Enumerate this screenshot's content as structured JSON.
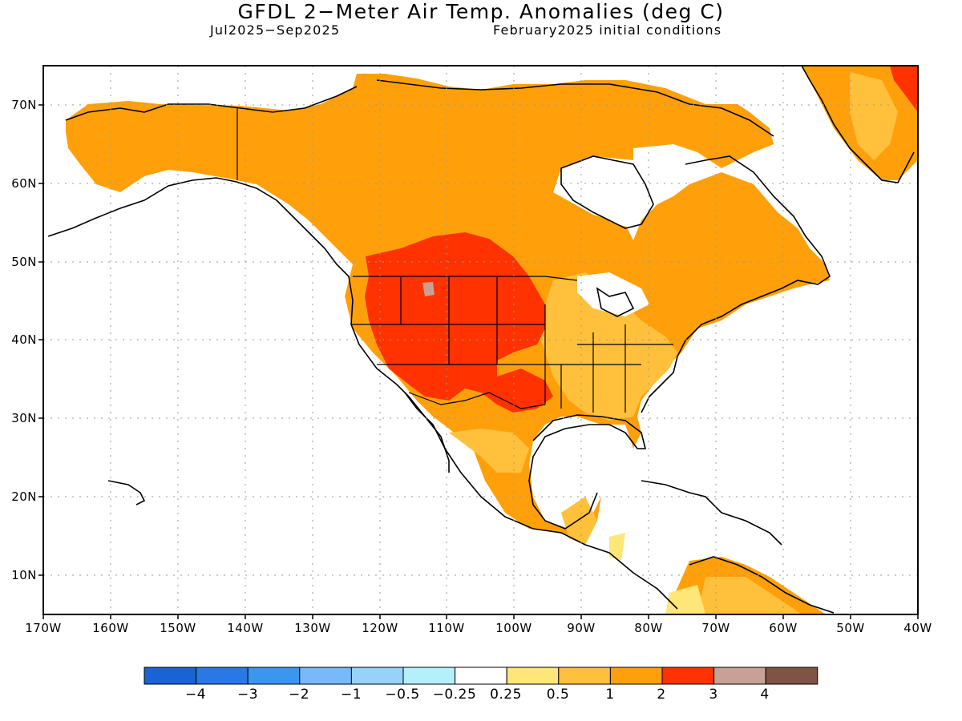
{
  "title": "GFDL 2−Meter Air Temp. Anomalies (deg C)",
  "subtitle_left": "Jul2025−Sep2025",
  "subtitle_right": "February2025 initial conditions",
  "lat_labels": [
    "70N",
    "60N",
    "50N",
    "40N",
    "30N",
    "20N",
    "10N"
  ],
  "lon_labels": [
    "170W",
    "160W",
    "150W",
    "140W",
    "130W",
    "120W",
    "110W",
    "100W",
    "90W",
    "80W",
    "70W",
    "60W",
    "50W",
    "40W"
  ],
  "colorbar": {
    "colors": [
      "#1964d2",
      "#2a78e6",
      "#3c96f0",
      "#78b9fa",
      "#96d2fa",
      "#b4f0fa",
      "#ffffff",
      "#ffe678",
      "#ffc03c",
      "#ffa00a",
      "#ff3200",
      "#c8a096",
      "#7e5446"
    ],
    "labels": [
      "−4",
      "−3",
      "−2",
      "−1",
      "−0.5",
      "−0.25",
      "0.25",
      "0.5",
      "1",
      "2",
      "3",
      "4"
    ]
  },
  "map": {
    "extent": {
      "lon_min": -170,
      "lon_max": -40,
      "lat_min": 5,
      "lat_max": 75
    },
    "regions": [
      {
        "category": "1-2",
        "color": "#ffa00a"
      },
      {
        "category": "2-3",
        "color": "#ff3200"
      },
      {
        "category": "0.5-1",
        "color": "#ffc03c"
      },
      {
        "category": "0.25-0.5",
        "color": "#ffe678"
      },
      {
        "category": "3-4",
        "color": "#c8a096"
      }
    ]
  }
}
